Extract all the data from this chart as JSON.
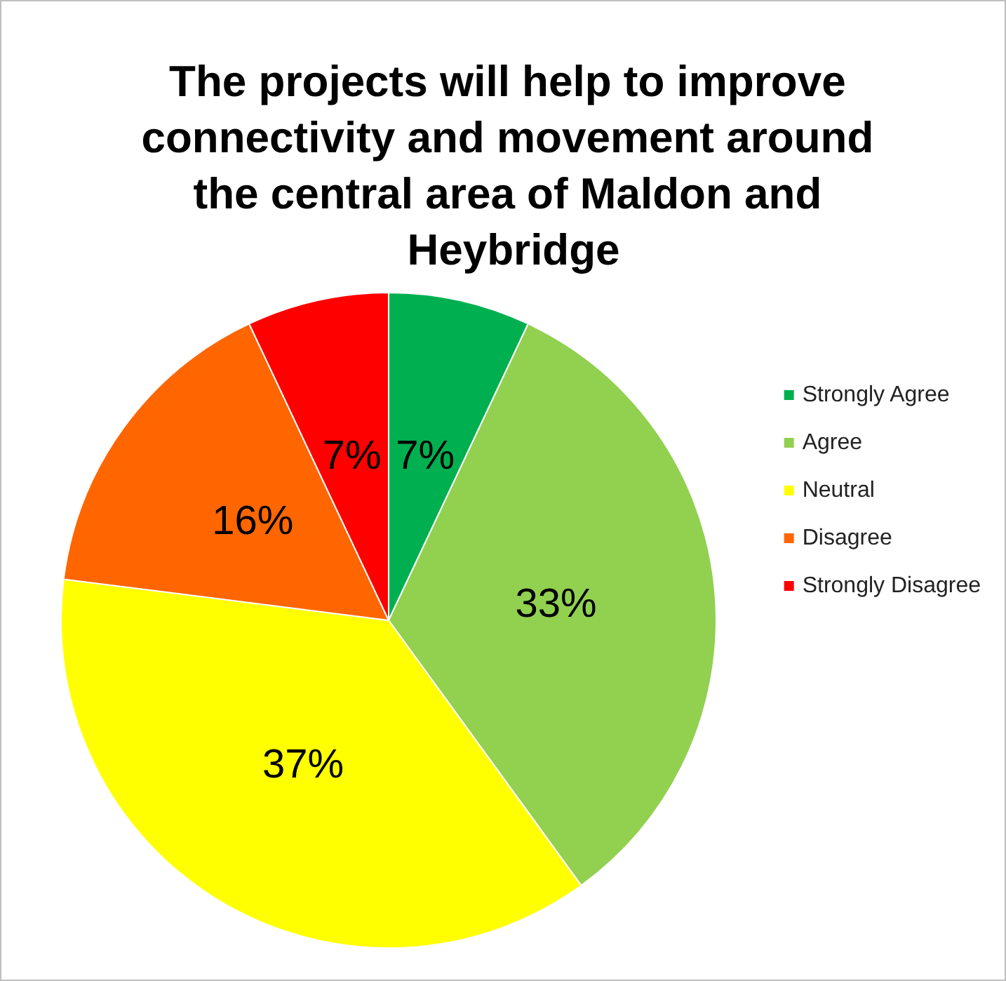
{
  "chart_data": {
    "type": "pie",
    "title": "The projects will help to improve connectivity and movement around the central area of Maldon and Heybridge",
    "categories": [
      "Strongly Agree",
      "Agree",
      "Neutral",
      "Disagree",
      "Strongly Disagree"
    ],
    "values": [
      7,
      33,
      37,
      16,
      7
    ],
    "colors": [
      "#00b050",
      "#92d050",
      "#ffff00",
      "#ff6600",
      "#ff0000"
    ],
    "value_labels": [
      "7%",
      "33%",
      "37%",
      "16%",
      "7%"
    ],
    "legend": "right"
  }
}
